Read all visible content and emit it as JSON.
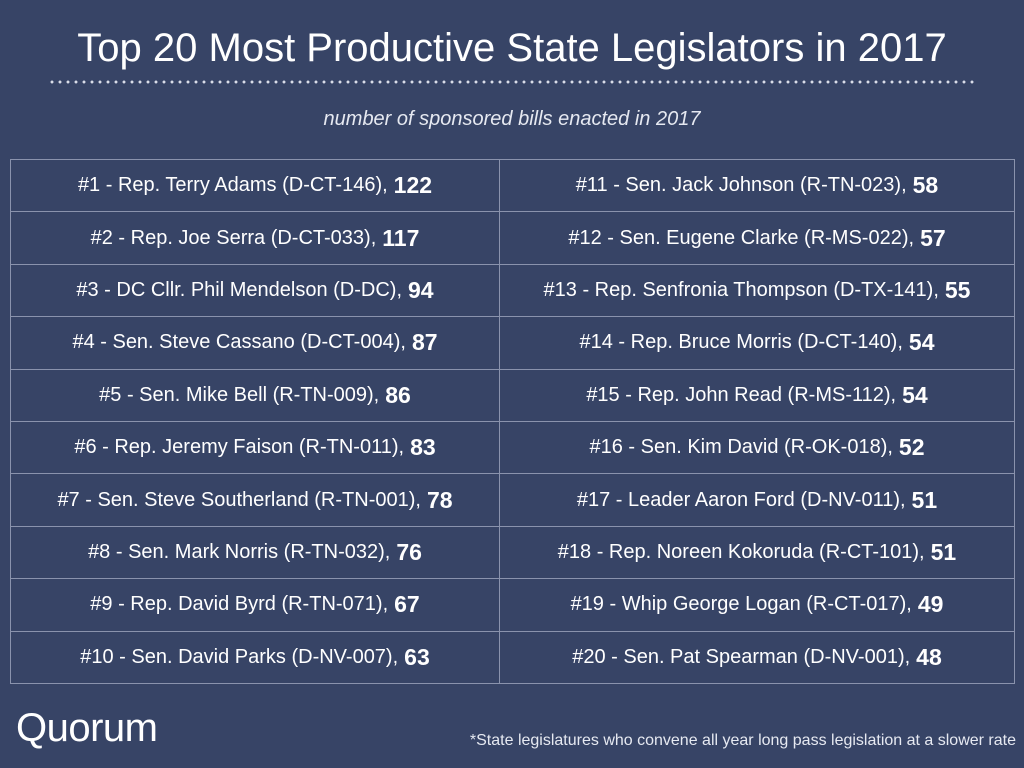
{
  "header": {
    "title": "Top 20 Most Productive State Legislators in 2017",
    "subtitle": "number of sponsored bills enacted in 2017"
  },
  "chart_data": {
    "type": "table",
    "title": "Top 20 Most Productive State Legislators in 2017",
    "subtitle": "number of sponsored bills enacted in 2017",
    "rows": [
      {
        "label": "#1 - Rep. Terry Adams (D-CT-146),",
        "value": 122
      },
      {
        "label": "#2 - Rep. Joe Serra (D-CT-033),",
        "value": 117
      },
      {
        "label": "#3 - DC Cllr. Phil Mendelson (D-DC),",
        "value": 94
      },
      {
        "label": "#4 - Sen. Steve Cassano (D-CT-004),",
        "value": 87
      },
      {
        "label": "#5 - Sen. Mike Bell (R-TN-009),",
        "value": 86
      },
      {
        "label": "#6 - Rep. Jeremy Faison (R-TN-011),",
        "value": 83
      },
      {
        "label": "#7 - Sen. Steve Southerland (R-TN-001),",
        "value": 78
      },
      {
        "label": "#8 - Sen. Mark Norris (R-TN-032),",
        "value": 76
      },
      {
        "label": "#9 - Rep. David Byrd (R-TN-071),",
        "value": 67
      },
      {
        "label": "#10 - Sen. David Parks (D-NV-007),",
        "value": 63
      },
      {
        "label": "#11 - Sen. Jack Johnson (R-TN-023),",
        "value": 58
      },
      {
        "label": "#12 - Sen. Eugene Clarke (R-MS-022),",
        "value": 57
      },
      {
        "label": "#13 - Rep. Senfronia Thompson (D-TX-141),",
        "value": 55
      },
      {
        "label": "#14 - Rep. Bruce Morris (D-CT-140),",
        "value": 54
      },
      {
        "label": "#15 - Rep. John Read (R-MS-112),",
        "value": 54
      },
      {
        "label": "#16 - Sen. Kim David (R-OK-018),",
        "value": 52
      },
      {
        "label": "#17 - Leader Aaron Ford (D-NV-011),",
        "value": 51
      },
      {
        "label": "#18 - Rep. Noreen Kokoruda (R-CT-101),",
        "value": 51
      },
      {
        "label": "#19 - Whip George Logan (R-CT-017),",
        "value": 49
      },
      {
        "label": "#20 - Sen. Pat Spearman (D-NV-001),",
        "value": 48
      }
    ]
  },
  "footer": {
    "logo_text": "Quorum",
    "footnote": "*State legislatures who convene all year long pass legislation at a slower rate"
  },
  "colors": {
    "background": "#374466",
    "text": "#ffffff",
    "grid": "#8a93ad"
  }
}
